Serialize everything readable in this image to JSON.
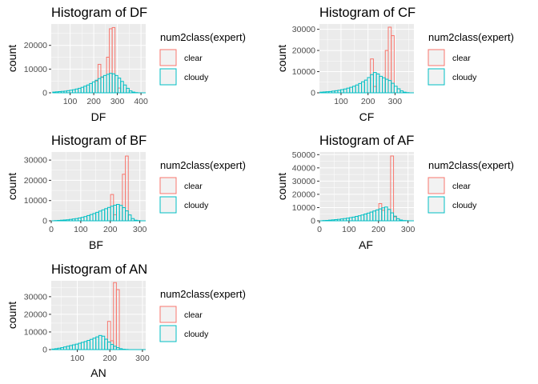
{
  "page": {
    "background": "#ffffff"
  },
  "legend": {
    "title": "num2class(expert)",
    "entries": [
      {
        "label": "clear",
        "color": "#F8766D"
      },
      {
        "label": "cloudy",
        "color": "#00BFC4"
      }
    ]
  },
  "chart_data": [
    {
      "type": "histogram",
      "title": "Histogram of DF",
      "xlabel": "DF",
      "ylabel": "count",
      "xlim": [
        20,
        420
      ],
      "ylim": [
        0,
        29000
      ],
      "xticks": [
        100,
        200,
        300,
        400
      ],
      "yticks": [
        0,
        10000,
        20000
      ],
      "bin_start": 26,
      "bin_width": 12,
      "series": [
        {
          "name": "clear",
          "values": [
            0,
            0,
            0,
            0,
            0,
            0,
            0,
            0,
            0,
            0,
            0,
            0,
            0,
            0,
            0,
            5000,
            12000,
            6500,
            0,
            15000,
            27000,
            27500,
            0,
            2000,
            0,
            0,
            0,
            0,
            0,
            0,
            0,
            0,
            0,
            0
          ]
        },
        {
          "name": "cloudy",
          "values": [
            300,
            400,
            500,
            600,
            700,
            900,
            1100,
            1300,
            1600,
            1900,
            2300,
            2800,
            3300,
            3900,
            4600,
            5300,
            6000,
            6700,
            7300,
            7800,
            8200,
            8000,
            7300,
            6200,
            4800,
            3300,
            1900,
            800,
            300,
            100,
            0,
            0,
            0,
            0
          ]
        }
      ],
      "legend": "right",
      "grid": true
    },
    {
      "type": "histogram",
      "title": "Histogram of CF",
      "xlabel": "CF",
      "ylabel": "count",
      "xlim": [
        20,
        370
      ],
      "ylim": [
        0,
        32500
      ],
      "xticks": [
        100,
        200,
        300
      ],
      "yticks": [
        0,
        10000,
        20000,
        30000
      ],
      "bin_start": 22,
      "bin_width": 11,
      "series": [
        {
          "name": "clear",
          "values": [
            0,
            0,
            0,
            0,
            0,
            0,
            0,
            0,
            0,
            0,
            0,
            0,
            0,
            0,
            0,
            0,
            0,
            16000,
            3000,
            0,
            0,
            0,
            20000,
            31000,
            27000,
            0,
            0,
            0,
            0,
            0,
            0,
            0
          ]
        },
        {
          "name": "cloudy",
          "values": [
            300,
            400,
            500,
            600,
            800,
            1000,
            1200,
            1500,
            1800,
            2200,
            2600,
            3100,
            3700,
            4400,
            5200,
            6000,
            7200,
            8600,
            9600,
            8900,
            7800,
            7100,
            6400,
            5800,
            4500,
            3100,
            1900,
            900,
            300,
            100,
            0,
            0
          ]
        }
      ],
      "legend": "right",
      "grid": true
    },
    {
      "type": "histogram",
      "title": "Histogram of BF",
      "xlabel": "BF",
      "ylabel": "count",
      "xlim": [
        0,
        320
      ],
      "ylim": [
        0,
        34000
      ],
      "xticks": [
        0,
        100,
        200,
        300
      ],
      "yticks": [
        0,
        10000,
        20000,
        30000
      ],
      "bin_start": 1,
      "bin_width": 10,
      "series": [
        {
          "name": "clear",
          "values": [
            0,
            0,
            0,
            0,
            0,
            0,
            0,
            0,
            0,
            0,
            0,
            0,
            0,
            0,
            0,
            0,
            0,
            0,
            0,
            0,
            13000,
            3000,
            0,
            0,
            23000,
            32000,
            0,
            0,
            0,
            0,
            0,
            0
          ]
        },
        {
          "name": "cloudy",
          "values": [
            0,
            100,
            200,
            300,
            400,
            500,
            700,
            900,
            1100,
            1400,
            1700,
            2100,
            2600,
            3100,
            3600,
            4200,
            4800,
            5400,
            6000,
            6600,
            7200,
            7700,
            8100,
            7600,
            6500,
            4900,
            2900,
            1100,
            300,
            100,
            0,
            0
          ]
        }
      ],
      "legend": "right",
      "grid": true
    },
    {
      "type": "histogram",
      "title": "Histogram of AF",
      "xlabel": "AF",
      "ylabel": "count",
      "xlim": [
        0,
        320
      ],
      "ylim": [
        0,
        52000
      ],
      "xticks": [
        0,
        100,
        200,
        300
      ],
      "yticks": [
        0,
        10000,
        20000,
        30000,
        40000,
        50000
      ],
      "bin_start": 1,
      "bin_width": 10,
      "series": [
        {
          "name": "clear",
          "values": [
            0,
            0,
            0,
            0,
            0,
            0,
            0,
            0,
            0,
            0,
            0,
            0,
            0,
            0,
            0,
            0,
            0,
            0,
            0,
            0,
            13000,
            8000,
            0,
            0,
            49000,
            3000,
            0,
            0,
            0,
            0,
            0,
            0
          ]
        },
        {
          "name": "cloudy",
          "values": [
            0,
            200,
            300,
            500,
            700,
            900,
            1100,
            1400,
            1700,
            2000,
            2400,
            2800,
            3300,
            3800,
            4400,
            5100,
            5800,
            6600,
            7400,
            8200,
            9000,
            9800,
            10400,
            8600,
            6000,
            3500,
            1600,
            600,
            200,
            100,
            0,
            0
          ]
        }
      ],
      "legend": "right",
      "grid": true
    },
    {
      "type": "histogram",
      "title": "Histogram of AN",
      "xlabel": "AN",
      "ylabel": "count",
      "xlim": [
        20,
        310
      ],
      "ylim": [
        0,
        39000
      ],
      "xticks": [
        100,
        200,
        300
      ],
      "yticks": [
        0,
        10000,
        20000,
        30000
      ],
      "bin_start": 22,
      "bin_width": 9,
      "series": [
        {
          "name": "clear",
          "values": [
            0,
            0,
            0,
            0,
            0,
            0,
            0,
            0,
            0,
            0,
            0,
            0,
            0,
            0,
            0,
            0,
            0,
            0,
            0,
            16000,
            5000,
            38000,
            34000,
            0,
            0,
            0,
            0,
            0,
            0,
            0,
            0,
            0
          ]
        },
        {
          "name": "cloudy",
          "values": [
            300,
            500,
            800,
            1100,
            1500,
            1900,
            2300,
            2700,
            3100,
            3600,
            4100,
            4600,
            5200,
            5800,
            6500,
            7200,
            8000,
            7600,
            5900,
            4300,
            2900,
            1900,
            1100,
            500,
            200,
            100,
            0,
            0,
            0,
            0,
            0,
            0
          ]
        }
      ],
      "legend": "right",
      "grid": true
    }
  ]
}
